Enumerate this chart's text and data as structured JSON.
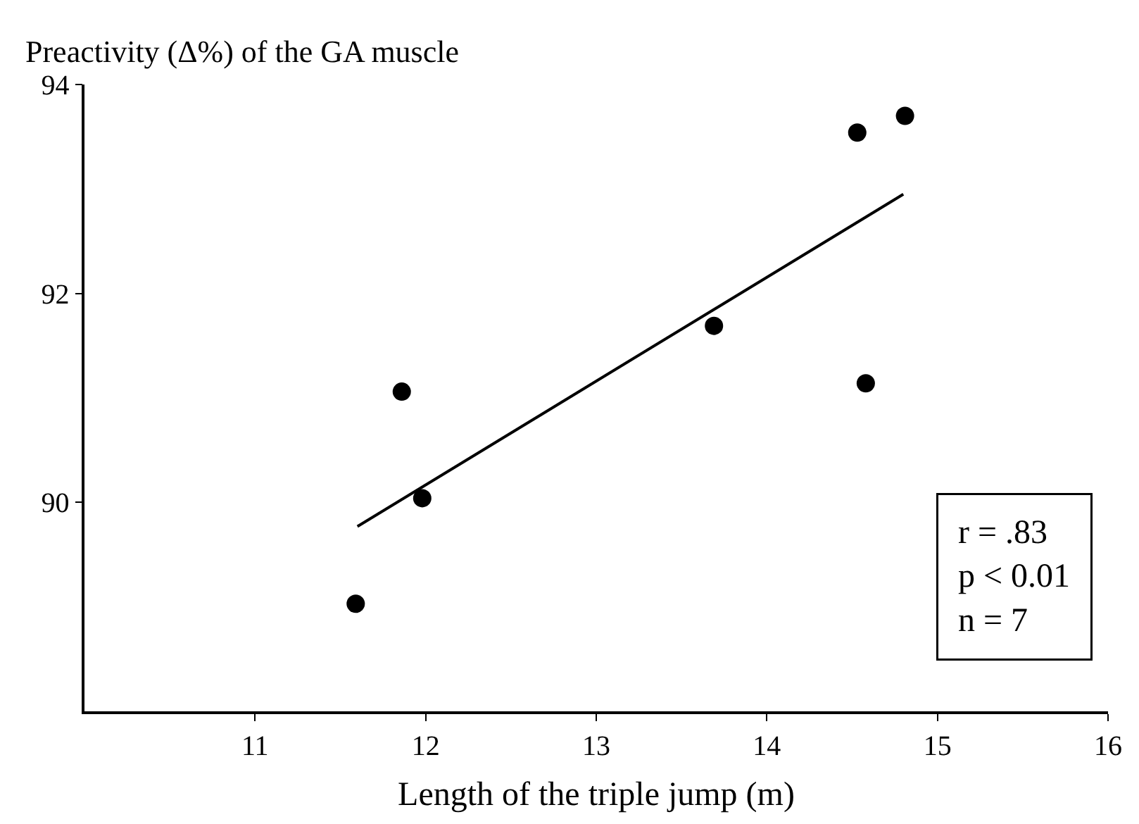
{
  "chart_data": {
    "type": "scatter",
    "ylabel": "Preactivity (Δ%) of the GA muscle",
    "xlabel": "Length of the triple jump (m)",
    "x": [
      11.59,
      11.86,
      11.98,
      13.69,
      14.53,
      14.81,
      14.58
    ],
    "series": [
      {
        "color": "#000000",
        "values": [
          89.03,
          91.06,
          90.04,
          91.69,
          93.54,
          93.7,
          91.14
        ],
        "marker": "circle"
      },
      {
        "type": "line",
        "color": "#000000",
        "x": [
          11.6,
          14.8
        ],
        "values": [
          89.77,
          92.95
        ],
        "line_style": "solid",
        "marker": "none"
      }
    ],
    "xlim": [
      10,
      16
    ],
    "xticks": [
      11,
      12,
      13,
      14,
      15,
      16
    ],
    "ylim": [
      88,
      94
    ],
    "yticks": [
      90,
      92,
      94
    ],
    "annotations": [
      "r = .83",
      "p < 0.01",
      "n = 7"
    ]
  }
}
